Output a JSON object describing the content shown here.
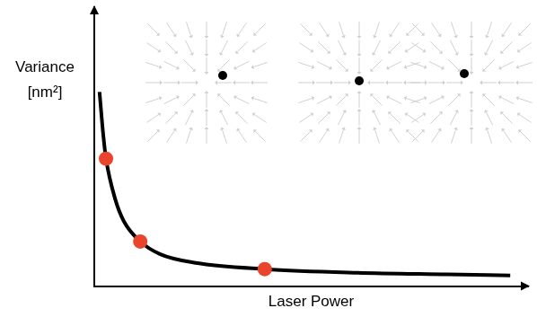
{
  "chart_data": {
    "type": "line",
    "x_label": "Laser Power",
    "y_label": "Variance\n[nm²]",
    "xlim": [
      0,
      100
    ],
    "ylim": [
      0,
      100
    ],
    "xticks": [],
    "yticks": [],
    "tick_labels": false,
    "grid": false,
    "series": [
      {
        "x": [
          1.2,
          2.1,
          2.7,
          4.8,
          6.8,
          10.6,
          15.1,
          23.4,
          39.3,
          60.7,
          81.4,
          95.9
        ],
        "values": [
          69.6,
          53.7,
          45.7,
          31.3,
          23.3,
          16.0,
          11.5,
          8.3,
          6.1,
          4.8,
          4.2,
          3.8
        ],
        "color": "#000000",
        "type": "line",
        "marker": "none",
        "line_style": "solid"
      },
      {
        "x": [
          2.7,
          10.6,
          39.3
        ],
        "values": [
          45.7,
          16.0,
          6.1
        ],
        "color": "#e8452c",
        "type": "scatter",
        "marker": "circle"
      }
    ]
  }
}
